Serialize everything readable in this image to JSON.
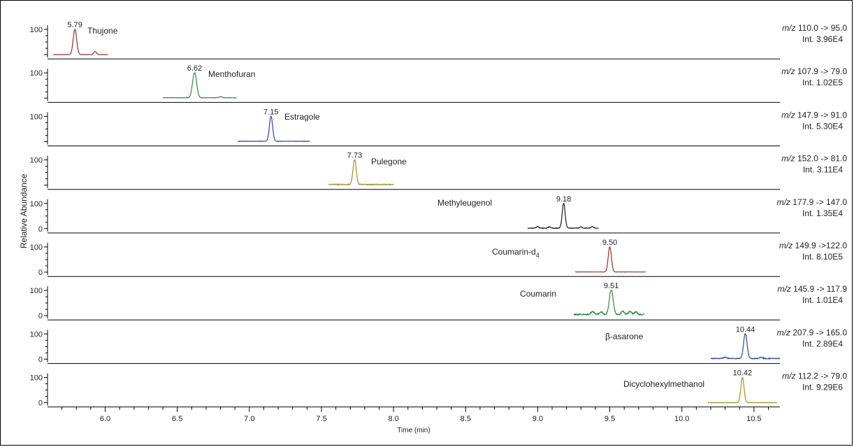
{
  "chart_data": {
    "type": "line",
    "title": "",
    "xlabel": "Time (min)",
    "ylabel": "Relative Abundance",
    "xlim": [
      5.6,
      10.68
    ],
    "x_ticks": [
      "6.0",
      "6.5",
      "7.0",
      "7.5",
      "8.0",
      "8.5",
      "9.0",
      "9.5",
      "10.0",
      "10.5"
    ],
    "x_tick_values": [
      6.0,
      6.5,
      7.0,
      7.5,
      8.0,
      8.5,
      9.0,
      9.5,
      10.0,
      10.5
    ],
    "y_tick_top": "100",
    "y_tick_bottom": "0",
    "panels": [
      {
        "name": "Thujone",
        "name_sub": "",
        "rt": 5.79,
        "rt_label": "5.79",
        "color": "#9b2d24",
        "transition_prefix": "m/z",
        "transition": " 110.0 -> 95.0",
        "intensity": "Int. 3.96E4",
        "show_zero": false,
        "x_range": [
          5.64,
          6.02
        ],
        "baseline": 0.0,
        "width": 0.012,
        "minor_peaks": [
          [
            5.93,
            0.12
          ]
        ]
      },
      {
        "name": "Menthofuran",
        "name_sub": "",
        "rt": 6.62,
        "rt_label": "6.62",
        "color": "#2e8b3a",
        "transition_prefix": "m/z",
        "transition": " 107.9 -> 79.0",
        "intensity": "Int. 1.02E5",
        "show_zero": false,
        "x_range": [
          6.4,
          6.91
        ],
        "baseline": 0.02,
        "width": 0.014,
        "minor_peaks": [
          [
            6.8,
            0.04
          ]
        ]
      },
      {
        "name": "Estragole",
        "name_sub": "",
        "rt": 7.15,
        "rt_label": "7.15",
        "color": "#2747b3",
        "transition_prefix": "m/z",
        "transition": " 147.9 -> 91.0",
        "intensity": "Int. 5.30E4",
        "show_zero": false,
        "x_range": [
          6.92,
          7.42
        ],
        "baseline": 0.02,
        "width": 0.011,
        "minor_peaks": []
      },
      {
        "name": "Pulegone",
        "name_sub": "",
        "rt": 7.73,
        "rt_label": "7.73",
        "color": "#a38f1f",
        "transition_prefix": "m/z",
        "transition": " 152.0 -> 81.0",
        "intensity": "Int. 3.11E4",
        "show_zero": false,
        "x_range": [
          7.55,
          8.0
        ],
        "baseline": 0.04,
        "width": 0.011,
        "minor_peaks": []
      },
      {
        "name": "Methyleugenol",
        "name_sub": "",
        "rt": 9.18,
        "rt_label": "9.18",
        "color": "#1a1a1a",
        "transition_prefix": "m/z",
        "transition": " 177.9 -> 147.0",
        "intensity": "Int. 1.35E4",
        "show_zero": true,
        "x_range": [
          8.93,
          9.42
        ],
        "baseline": 0.03,
        "width": 0.01,
        "minor_peaks": [
          [
            9.0,
            0.06
          ],
          [
            9.08,
            0.05
          ],
          [
            9.3,
            0.05
          ],
          [
            9.38,
            0.06
          ]
        ]
      },
      {
        "name": "Coumarin-d",
        "name_sub": "4",
        "rt": 9.5,
        "rt_label": "9.50",
        "color": "#9b2d24",
        "transition_prefix": "m/z",
        "transition": " 149.9 ->122.0",
        "intensity": "Int. 8.10E5",
        "show_zero": true,
        "x_range": [
          9.26,
          9.75
        ],
        "baseline": 0.01,
        "width": 0.011,
        "minor_peaks": []
      },
      {
        "name": "Coumarin",
        "name_sub": "",
        "rt": 9.51,
        "rt_label": "9.51",
        "color": "#2e8b3a",
        "transition_prefix": "m/z",
        "transition": " 145.9 -> 117.9",
        "intensity": "Int. 1.01E4",
        "show_zero": true,
        "x_range": [
          9.25,
          9.74
        ],
        "baseline": 0.07,
        "width": 0.013,
        "minor_peaks": [
          [
            9.38,
            0.12
          ],
          [
            9.44,
            0.1
          ],
          [
            9.59,
            0.14
          ],
          [
            9.64,
            0.12
          ],
          [
            9.68,
            0.1
          ]
        ]
      },
      {
        "name": "β-asarone",
        "name_sub": "",
        "rt": 10.44,
        "rt_label": "10.44",
        "color": "#2747b3",
        "transition_prefix": "m/z",
        "transition": " 207.9 -> 165.0",
        "intensity": "Int. 2.89E4",
        "show_zero": true,
        "x_range": [
          10.2,
          10.68
        ],
        "baseline": 0.04,
        "width": 0.012,
        "minor_peaks": [
          [
            10.3,
            0.06
          ],
          [
            10.55,
            0.05
          ]
        ]
      },
      {
        "name": "Dicyclohexylmethanol",
        "name_sub": "",
        "rt": 10.42,
        "rt_label": "10.42",
        "color": "#a38f1f",
        "transition_prefix": "m/z",
        "transition": " 112.2 -> 79.0",
        "intensity": "Int. 9.29E6",
        "show_zero": true,
        "x_range": [
          10.18,
          10.66
        ],
        "baseline": 0.0,
        "width": 0.011,
        "minor_peaks": []
      }
    ]
  }
}
